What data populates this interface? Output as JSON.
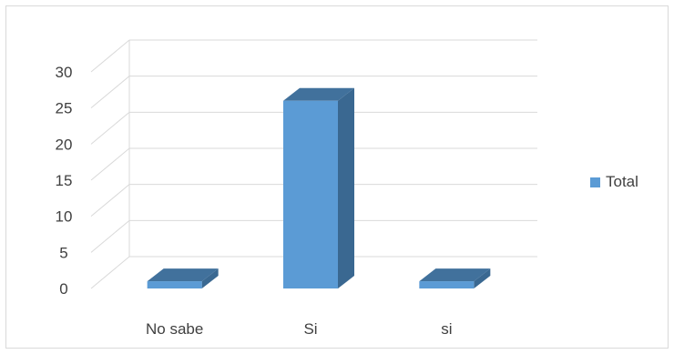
{
  "chart_data": {
    "type": "bar",
    "style": "3d-column",
    "categories": [
      "No sabe",
      "Si",
      "si"
    ],
    "series": [
      {
        "name": "Total",
        "values": [
          1,
          26,
          1
        ]
      }
    ],
    "ylim": [
      0,
      30
    ],
    "yticks": [
      0,
      5,
      10,
      15,
      20,
      25,
      30
    ],
    "grid": true,
    "legend_position": "right",
    "colors": {
      "front": "#5b9bd5",
      "side": "#3a6891",
      "top": "#41719c",
      "grid": "#d9d9d9"
    }
  }
}
